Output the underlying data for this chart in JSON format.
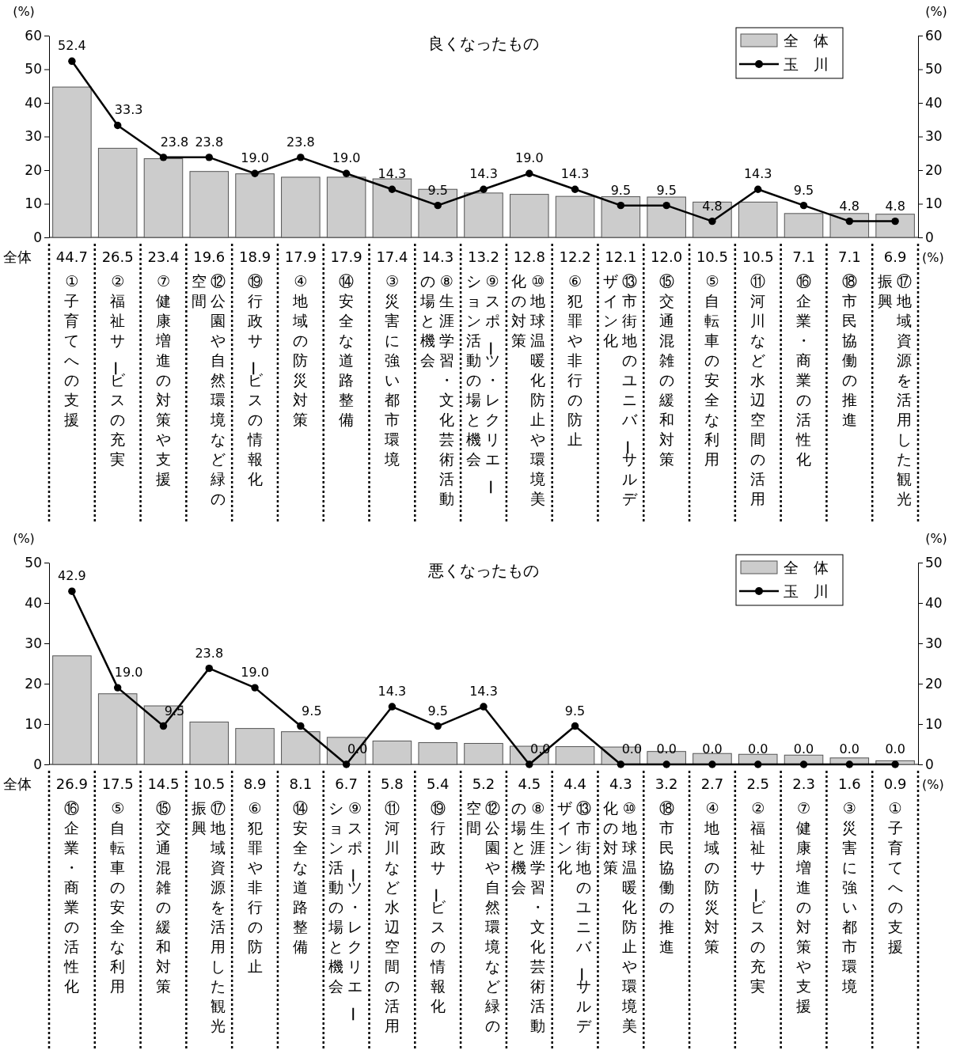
{
  "chart_data": [
    {
      "type": "bar",
      "title": "良くなったもの",
      "ylabel": "(%)",
      "y2label": "(%)",
      "ylim": [
        0,
        60
      ],
      "yticks": [
        0,
        10,
        20,
        30,
        40,
        50,
        60
      ],
      "y2lim": [
        0,
        60
      ],
      "y2ticks": [
        0,
        10,
        20,
        30,
        40,
        50,
        60
      ],
      "legend": "top right",
      "annotations": [
        "全体",
        "(%)"
      ],
      "categories": [
        "①子育てへの支援",
        "②福祉サービスの充実",
        "⑦健康増進の対策や支援",
        "⑫公園や自然環境など緑の空間",
        "⑲行政サービスの情報化",
        "④地域の防災対策",
        "⑭安全な道路整備",
        "③災害に強い都市環境",
        "⑧生涯学習・文化芸術活動の場と機会",
        "⑨スポーツ・レクリエーション活動の場と機会",
        "⑩地球温暖化防止や環境美化の対策",
        "⑥犯罪や非行の防止",
        "⑬市街地のユニバーサルデザイン化",
        "⑮交通混雑の緩和対策",
        "⑤自転車の安全な利用",
        "⑪河川など水辺空間の活用",
        "⑯企業・商業の活性化",
        "⑱市民協働の推進",
        "⑰地域資源を活用した観光振興"
      ],
      "series": [
        {
          "name": "全　体",
          "color": "#cccccc",
          "values": [
            44.7,
            26.5,
            23.4,
            19.6,
            18.9,
            17.9,
            17.9,
            17.4,
            14.3,
            13.2,
            12.8,
            12.2,
            12.1,
            12.0,
            10.5,
            10.5,
            7.1,
            7.1,
            6.9
          ],
          "value_labels": [
            "44.7",
            "26.5",
            "23.4",
            "19.6",
            "18.9",
            "17.9",
            "17.9",
            "17.4",
            "14.3",
            "13.2",
            "12.8",
            "12.2",
            "12.1",
            "12.0",
            "10.5",
            "10.5",
            "7.1",
            "7.1",
            "6.9"
          ]
        },
        {
          "type": "line",
          "name": "玉　川",
          "color": "#000000",
          "marker": "circle",
          "values": [
            52.4,
            33.3,
            23.8,
            23.8,
            19.0,
            23.8,
            19.0,
            14.3,
            9.5,
            14.3,
            19.0,
            14.3,
            9.5,
            9.5,
            4.8,
            14.3,
            9.5,
            4.8,
            4.8
          ],
          "value_labels": [
            "52.4",
            "33.3",
            "23.8",
            "23.8",
            "19.0",
            "23.8",
            "19.0",
            "14.3",
            "9.5",
            "14.3",
            "19.0",
            "14.3",
            "9.5",
            "9.5",
            "4.8",
            "14.3",
            "9.5",
            "4.8",
            "4.8"
          ]
        }
      ]
    },
    {
      "type": "bar",
      "title": "悪くなったもの",
      "ylabel": "(%)",
      "y2label": "(%)",
      "ylim": [
        0,
        50
      ],
      "yticks": [
        0,
        10,
        20,
        30,
        40,
        50
      ],
      "y2lim": [
        0,
        50
      ],
      "y2ticks": [
        0,
        10,
        20,
        30,
        40,
        50
      ],
      "legend": "top right",
      "annotations": [
        "全体",
        "(%)"
      ],
      "categories": [
        "⑯企業・商業の活性化",
        "⑤自転車の安全な利用",
        "⑮交通混雑の緩和対策",
        "⑰地域資源を活用した観光振興",
        "⑥犯罪や非行の防止",
        "⑭安全な道路整備",
        "⑨スポーツ・レクリエーション活動の場と機会",
        "⑪河川など水辺空間の活用",
        "⑲行政サービスの情報化",
        "⑫公園や自然環境など緑の空間",
        "⑧生涯学習・文化芸術活動の場と機会",
        "⑬市街地のユニバーサルデザイン化",
        "⑩地球温暖化防止や環境美化の対策",
        "⑱市民協働の推進",
        "④地域の防災対策",
        "②福祉サービスの充実",
        "⑦健康増進の対策や支援",
        "③災害に強い都市環境",
        "①子育てへの支援"
      ],
      "series": [
        {
          "name": "全　体",
          "color": "#cccccc",
          "values": [
            26.9,
            17.5,
            14.5,
            10.5,
            8.9,
            8.1,
            6.7,
            5.8,
            5.4,
            5.2,
            4.5,
            4.4,
            4.3,
            3.2,
            2.7,
            2.5,
            2.3,
            1.6,
            0.9
          ],
          "value_labels": [
            "26.9",
            "17.5",
            "14.5",
            "10.5",
            "8.9",
            "8.1",
            "6.7",
            "5.8",
            "5.4",
            "5.2",
            "4.5",
            "4.4",
            "4.3",
            "3.2",
            "2.7",
            "2.5",
            "2.3",
            "1.6",
            "0.9"
          ]
        },
        {
          "type": "line",
          "name": "玉　川",
          "color": "#000000",
          "marker": "circle",
          "values": [
            42.9,
            19.0,
            9.5,
            23.8,
            19.0,
            9.5,
            0.0,
            14.3,
            9.5,
            14.3,
            0.0,
            9.5,
            0.0,
            0.0,
            0.0,
            0.0,
            0.0,
            0.0,
            0.0
          ],
          "value_labels": [
            "42.9",
            "19.0",
            "9.5",
            "23.8",
            "19.0",
            "9.5",
            "0.0",
            "14.3",
            "9.5",
            "14.3",
            "0.0",
            "9.5",
            "0.0",
            "0.0",
            "0.0",
            "0.0",
            "0.0",
            "0.0",
            "0.0"
          ]
        }
      ]
    }
  ]
}
